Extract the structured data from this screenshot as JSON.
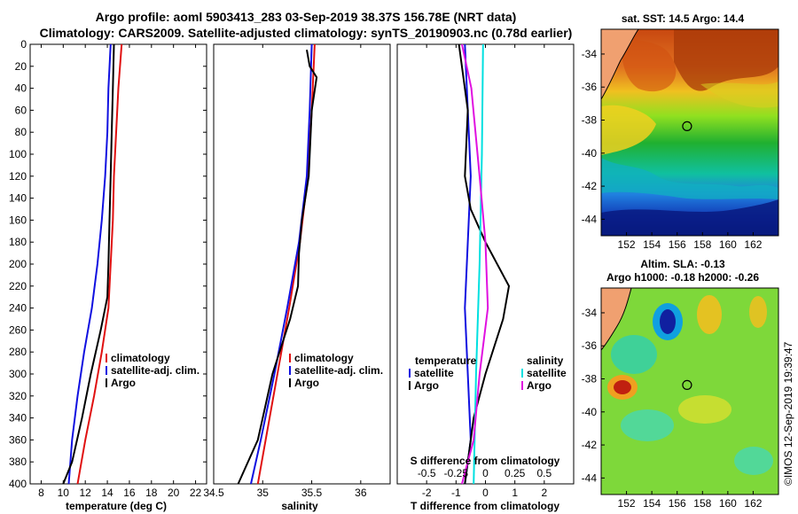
{
  "header": {
    "line1": "Argo profile: aoml 5903413_283 03-Sep-2019 38.37S 156.78E (NRT data)",
    "line2": "Climatology: CARS2009. Satellite-adjusted climatology: synTS_20190903.nc (0.78d earlier)"
  },
  "colors": {
    "climatology": "#e01010",
    "satellite": "#1010e0",
    "argo": "#000000",
    "sat_salinity": "#00e0e0",
    "clim_salinity_diff": "#e010e0"
  },
  "chart_data": [
    {
      "type": "line",
      "id": "temperature",
      "xlabel": "temperature (deg C)",
      "ylabel": "",
      "xlim": [
        7,
        23
      ],
      "ylim": [
        400,
        0
      ],
      "xticks": [
        8,
        10,
        12,
        14,
        16,
        18,
        20,
        22
      ],
      "yticks": [
        0,
        20,
        40,
        60,
        80,
        100,
        120,
        140,
        160,
        180,
        200,
        220,
        240,
        260,
        280,
        300,
        320,
        340,
        360,
        380,
        400
      ],
      "series": [
        {
          "name": "climatology",
          "color": "#e01010",
          "points": [
            [
              15.3,
              0
            ],
            [
              15.0,
              40
            ],
            [
              14.8,
              80
            ],
            [
              14.6,
              120
            ],
            [
              14.5,
              160
            ],
            [
              14.3,
              200
            ],
            [
              14.1,
              240
            ],
            [
              13.5,
              280
            ],
            [
              12.8,
              320
            ],
            [
              12.0,
              360
            ],
            [
              11.3,
              400
            ]
          ]
        },
        {
          "name": "satellite-adj. clim.",
          "color": "#1010e0",
          "points": [
            [
              14.3,
              0
            ],
            [
              14.1,
              40
            ],
            [
              14.0,
              80
            ],
            [
              13.8,
              120
            ],
            [
              13.5,
              160
            ],
            [
              13.1,
              200
            ],
            [
              12.6,
              240
            ],
            [
              11.9,
              280
            ],
            [
              11.3,
              320
            ],
            [
              10.8,
              360
            ],
            [
              10.5,
              400
            ]
          ]
        },
        {
          "name": "Argo",
          "color": "#000000",
          "points": [
            [
              14.6,
              0
            ],
            [
              14.5,
              40
            ],
            [
              14.4,
              80
            ],
            [
              14.3,
              120
            ],
            [
              14.2,
              160
            ],
            [
              14.1,
              200
            ],
            [
              14.0,
              230
            ],
            [
              13.4,
              260
            ],
            [
              12.5,
              300
            ],
            [
              11.7,
              340
            ],
            [
              10.8,
              380
            ],
            [
              10.0,
              400
            ]
          ]
        }
      ],
      "legend": [
        "climatology",
        "satellite-adj. clim.",
        "Argo"
      ]
    },
    {
      "type": "line",
      "id": "salinity",
      "xlabel": "salinity",
      "ylabel": "",
      "xlim": [
        34.5,
        36.3
      ],
      "ylim": [
        400,
        0
      ],
      "xticks": [
        34.5,
        35,
        35.5,
        36
      ],
      "xticklabels": [
        "34.5",
        "35",
        "35.5",
        "36"
      ],
      "series": [
        {
          "name": "climatology",
          "color": "#e01010",
          "points": [
            [
              35.53,
              0
            ],
            [
              35.5,
              60
            ],
            [
              35.46,
              120
            ],
            [
              35.38,
              180
            ],
            [
              35.27,
              240
            ],
            [
              35.15,
              300
            ],
            [
              35.03,
              360
            ],
            [
              34.95,
              400
            ]
          ]
        },
        {
          "name": "satellite-adj. clim.",
          "color": "#1010e0",
          "points": [
            [
              35.5,
              0
            ],
            [
              35.48,
              60
            ],
            [
              35.45,
              120
            ],
            [
              35.37,
              180
            ],
            [
              35.25,
              240
            ],
            [
              35.12,
              300
            ],
            [
              34.98,
              360
            ],
            [
              34.88,
              400
            ]
          ]
        },
        {
          "name": "Argo",
          "color": "#000000",
          "points": [
            [
              35.45,
              5
            ],
            [
              35.48,
              20
            ],
            [
              35.55,
              30
            ],
            [
              35.5,
              60
            ],
            [
              35.47,
              120
            ],
            [
              35.4,
              160
            ],
            [
              35.37,
              190
            ],
            [
              35.36,
              220
            ],
            [
              35.28,
              250
            ],
            [
              35.1,
              300
            ],
            [
              34.95,
              360
            ],
            [
              34.75,
              400
            ]
          ]
        }
      ],
      "legend": [
        "climatology",
        "satellite-adj. clim.",
        "Argo"
      ]
    },
    {
      "type": "line",
      "id": "differences",
      "xlabel": "T difference from climatology",
      "xlabel_top": "S difference from climatology",
      "xlim": [
        -3,
        3
      ],
      "ylim": [
        400,
        0
      ],
      "xticks": [
        -2,
        -1,
        0,
        1,
        2
      ],
      "xticklabels": [
        "-2",
        "-1",
        "0",
        "1",
        "2"
      ],
      "top_ticks": [
        -0.5,
        -0.25,
        0,
        0.25,
        0.5
      ],
      "top_ticklabels": [
        "-0.5",
        "-0.25",
        "0",
        "0.25",
        "0.5"
      ],
      "series": [
        {
          "name": "temperature satellite",
          "color": "#1010e0",
          "points": [
            [
              -0.7,
              0
            ],
            [
              -0.6,
              60
            ],
            [
              -0.5,
              120
            ],
            [
              -0.6,
              180
            ],
            [
              -0.7,
              240
            ],
            [
              -0.6,
              300
            ],
            [
              -0.5,
              360
            ],
            [
              -0.7,
              400
            ]
          ]
        },
        {
          "name": "temperature Argo",
          "color": "#000000",
          "points": [
            [
              -0.9,
              0
            ],
            [
              -0.6,
              60
            ],
            [
              -0.7,
              120
            ],
            [
              -0.5,
              150
            ],
            [
              0.0,
              180
            ],
            [
              0.8,
              220
            ],
            [
              0.6,
              250
            ],
            [
              0.0,
              300
            ],
            [
              -0.4,
              340
            ],
            [
              -0.7,
              400
            ]
          ]
        },
        {
          "name": "salinity satellite",
          "color": "#00e0e0",
          "points": [
            [
              -0.02,
              0
            ],
            [
              -0.03,
              100
            ],
            [
              -0.05,
              200
            ],
            [
              -0.08,
              300
            ],
            [
              -0.1,
              400
            ]
          ]
        },
        {
          "name": "salinity Argo",
          "color": "#e010e0",
          "points": [
            [
              -0.2,
              0
            ],
            [
              -0.12,
              40
            ],
            [
              -0.05,
              120
            ],
            [
              0.0,
              180
            ],
            [
              0.02,
              240
            ],
            [
              -0.05,
              300
            ],
            [
              -0.1,
              360
            ],
            [
              -0.2,
              400
            ]
          ]
        }
      ],
      "legend_left_title": "temperature",
      "legend_right_title": "salinity",
      "legend_left": [
        "satellite",
        "Argo"
      ],
      "legend_right": [
        "satellite",
        "Argo"
      ]
    },
    {
      "type": "heatmap",
      "id": "sst_map",
      "title": "sat. SST: 14.5 Argo: 14.4",
      "xticks": [
        152,
        154,
        156,
        158,
        160,
        162
      ],
      "yticks": [
        -34,
        -36,
        -38,
        -40,
        -42,
        -44
      ],
      "xlim": [
        150,
        164
      ],
      "ylim": [
        -45,
        -32.5
      ],
      "marker": [
        156.78,
        -38.37
      ]
    },
    {
      "type": "heatmap",
      "id": "sla_map",
      "title": "Altim. SLA: -0.13",
      "subtitle": "Argo h1000: -0.18 h2000: -0.26",
      "xticks": [
        152,
        154,
        156,
        158,
        160,
        162
      ],
      "yticks": [
        -34,
        -36,
        -38,
        -40,
        -42,
        -44
      ],
      "xlim": [
        150,
        164
      ],
      "ylim": [
        -45,
        -32.5
      ],
      "marker": [
        156.78,
        -38.37
      ]
    }
  ],
  "watermark": "©IMOS 12-Sep-2019 19:39:47"
}
